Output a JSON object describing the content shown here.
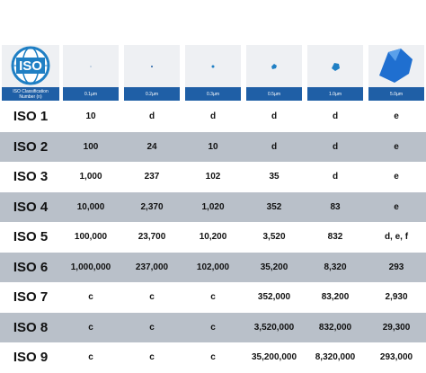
{
  "header": {
    "logo": "ISO",
    "first_column": "ISO Classification Number (n)",
    "sizes": [
      "0.1µm",
      "0.2µm",
      "0.3µm",
      "0.5µm",
      "1.0µm",
      "5.0µm"
    ]
  },
  "table": {
    "rows": [
      [
        "ISO 1",
        "10",
        "d",
        "d",
        "d",
        "d",
        "e"
      ],
      [
        "ISO 2",
        "100",
        "24",
        "10",
        "d",
        "d",
        "e"
      ],
      [
        "ISO 3",
        "1,000",
        "237",
        "102",
        "35",
        "d",
        "e"
      ],
      [
        "ISO 4",
        "10,000",
        "2,370",
        "1,020",
        "352",
        "83",
        "e"
      ],
      [
        "ISO 5",
        "100,000",
        "23,700",
        "10,200",
        "3,520",
        "832",
        "d, e, f"
      ],
      [
        "ISO 6",
        "1,000,000",
        "237,000",
        "102,000",
        "35,200",
        "8,320",
        "293"
      ],
      [
        "ISO 7",
        "c",
        "c",
        "c",
        "352,000",
        "83,200",
        "2,930"
      ],
      [
        "ISO 8",
        "c",
        "c",
        "c",
        "3,520,000",
        "832,000",
        "29,300"
      ],
      [
        "ISO 9",
        "c",
        "c",
        "c",
        "35,200,000",
        "8,320,000",
        "293,000"
      ]
    ]
  }
}
